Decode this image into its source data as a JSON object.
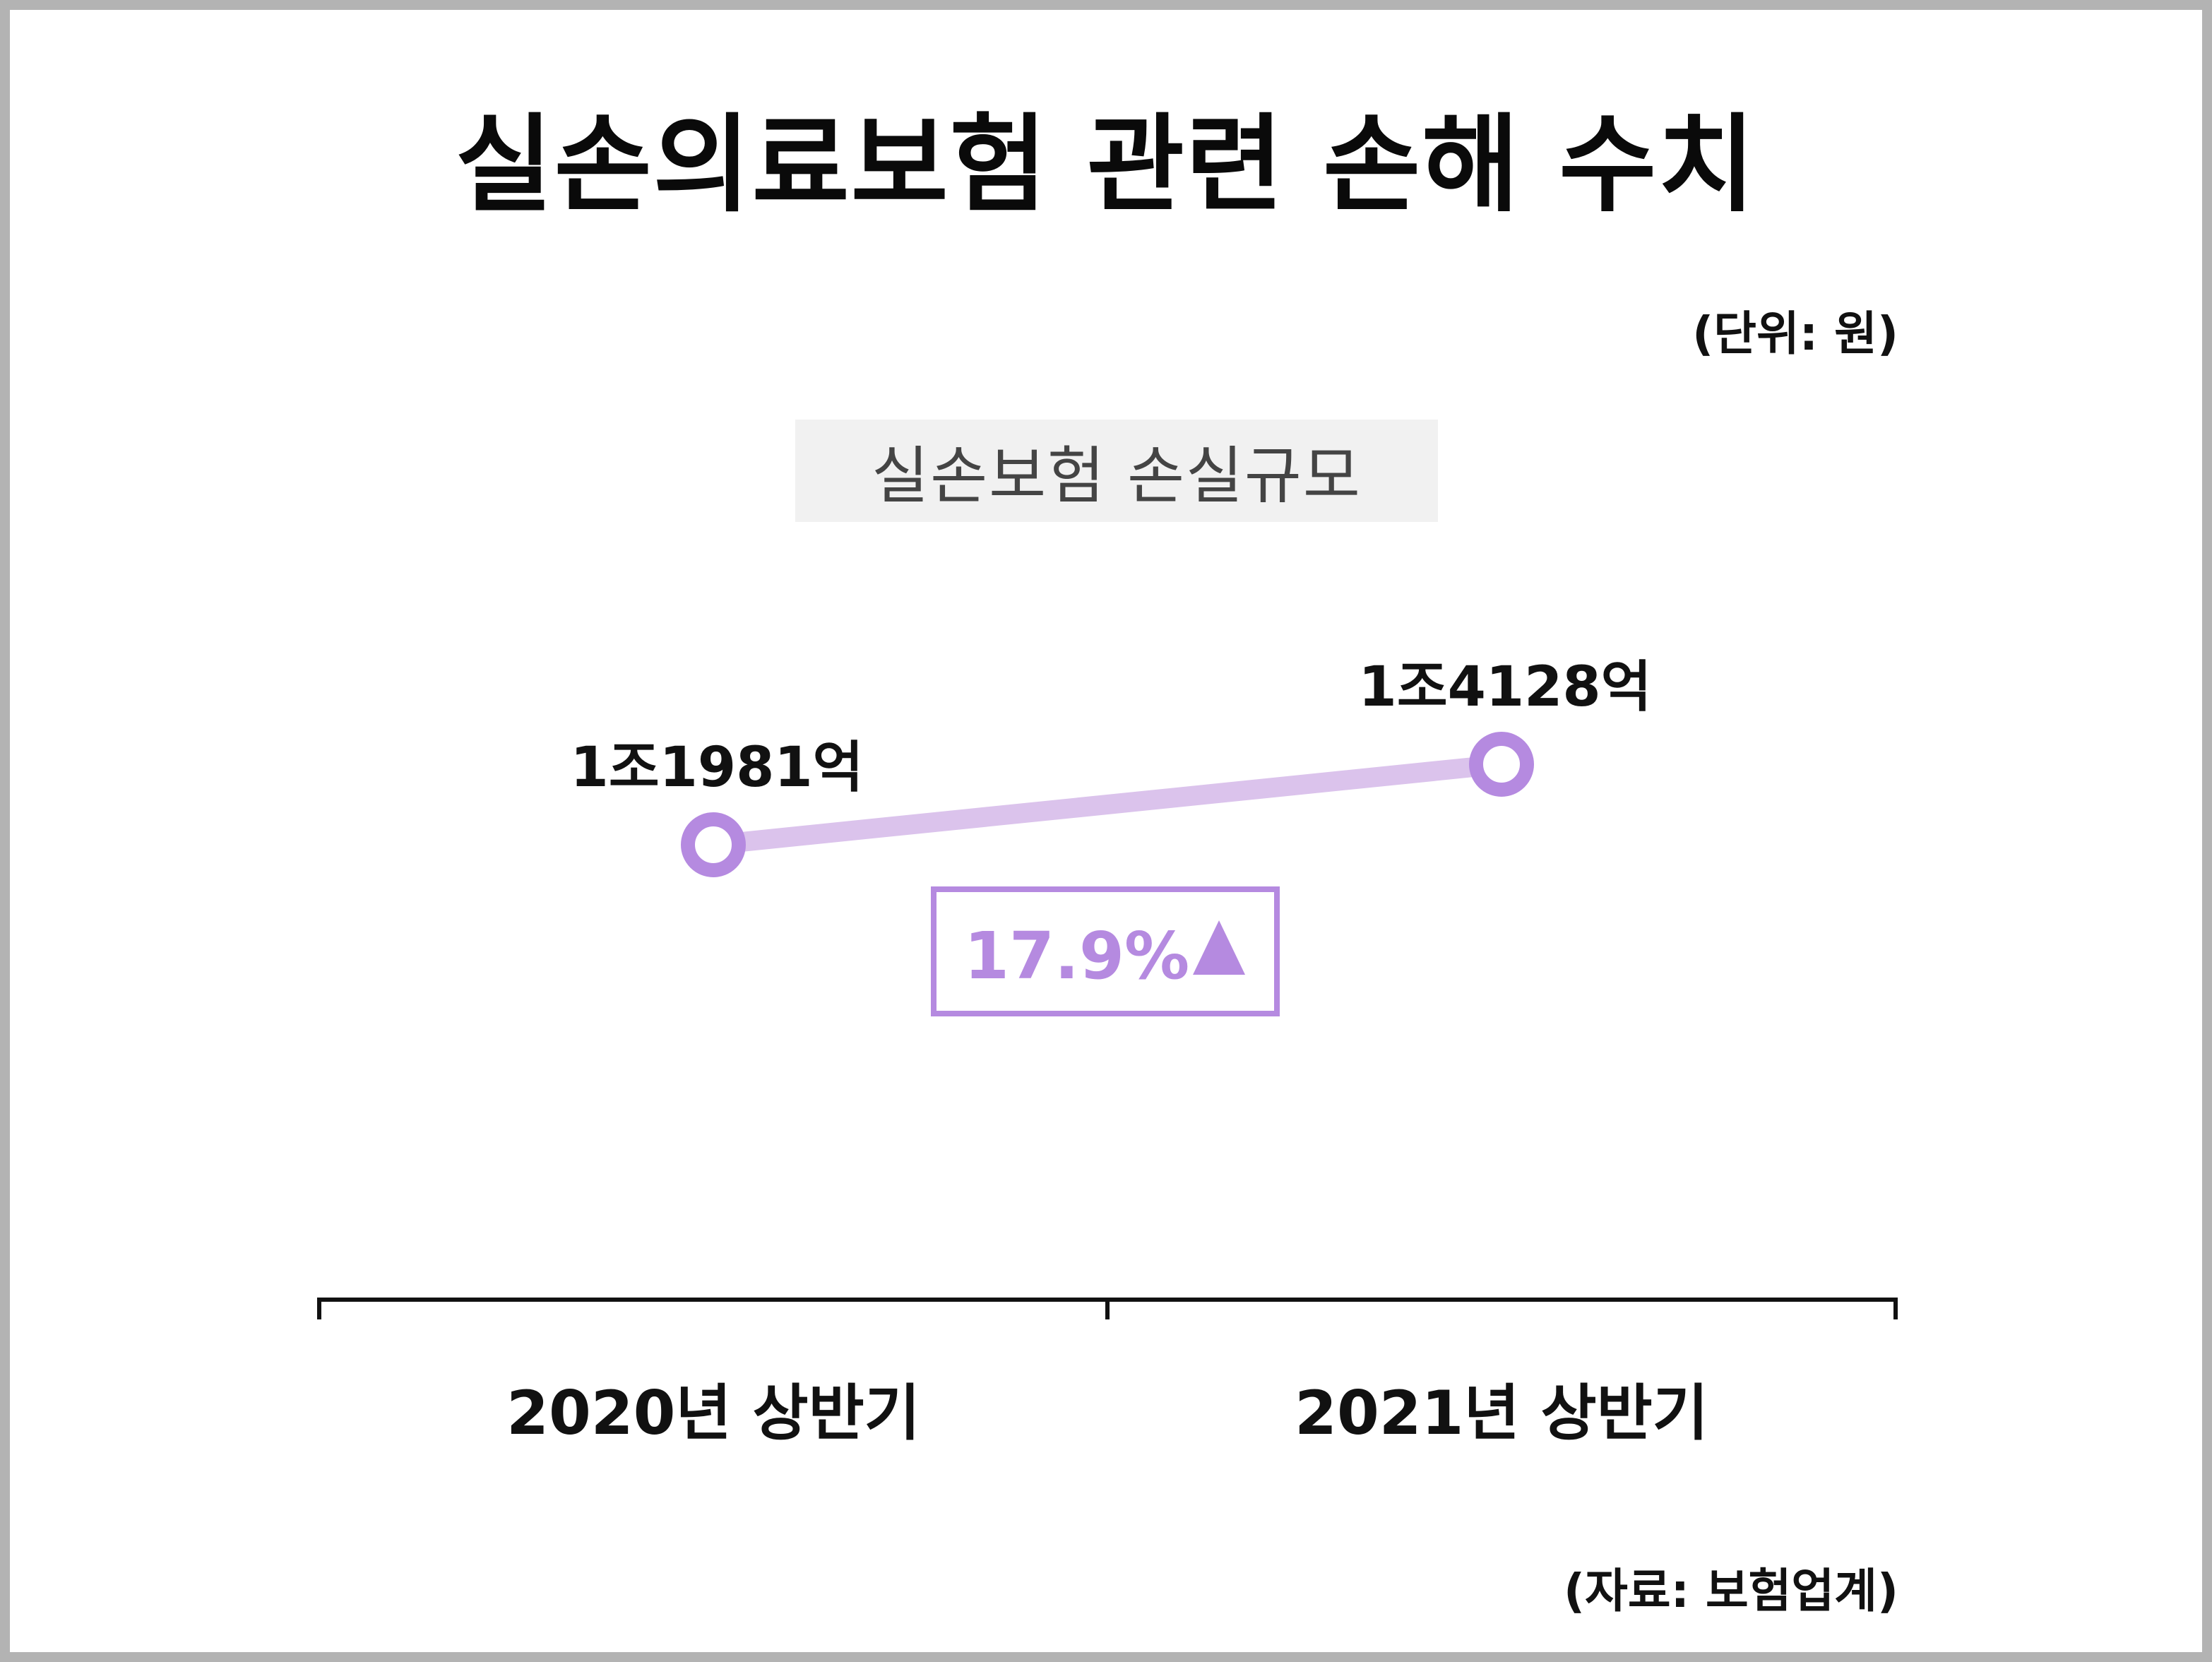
{
  "title": "실손의료보험 관련 손해 수치",
  "unit_label": "(단위: 원)",
  "source_label": "(자료: 보험업계)",
  "colors": {
    "line": "#dbc3ec",
    "marker": "#b58ae0",
    "change": "#b58ae0",
    "axis": "#111111"
  },
  "chart_data": {
    "type": "line",
    "title": "실손의료보험 관련 손해 수치",
    "categories": [
      "2020년 상반기",
      "2021년 상반기"
    ],
    "series": [
      {
        "name": "실손보험 손실규모",
        "values": [
          11981,
          14128
        ],
        "value_labels": [
          "1조1981억",
          "1조4128억"
        ]
      }
    ],
    "unit": "억 원",
    "ylim": [
      0,
      20000
    ],
    "grid": false,
    "change_label": "17.9%",
    "change_direction_icon": "up-triangle-icon"
  }
}
